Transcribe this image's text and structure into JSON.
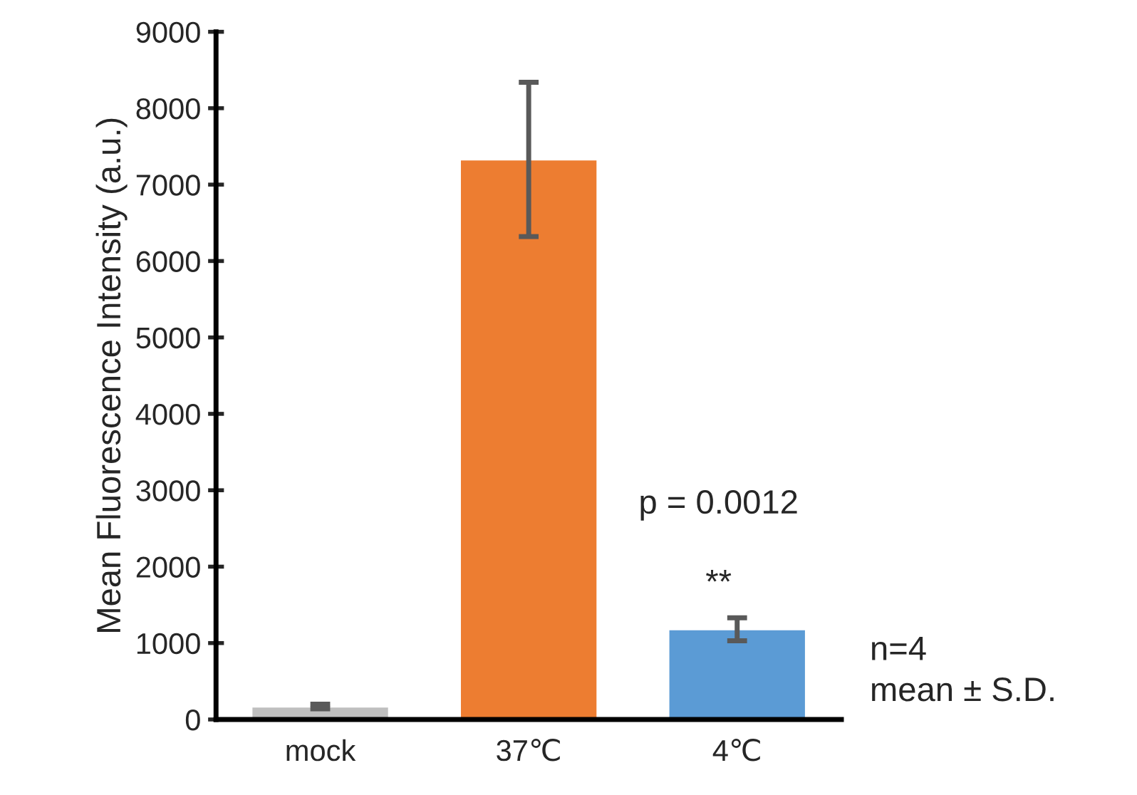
{
  "chart_data": {
    "type": "bar",
    "ylabel": "Mean Fluorescence Intensity (a.u.)",
    "categories": [
      "mock",
      "37℃",
      "4℃"
    ],
    "values": [
      170,
      7330,
      1180
    ],
    "errors": [
      30,
      1010,
      150
    ],
    "colors": [
      "#bfbfbf",
      "#ed7d31",
      "#5b9bd5"
    ],
    "ylim": [
      0,
      9000
    ],
    "yticks": [
      0,
      1000,
      2000,
      3000,
      4000,
      5000,
      6000,
      7000,
      8000,
      9000
    ],
    "grid": false,
    "annotations": [
      "p = 0.0012",
      "**",
      "n=4\nmean ± S.D."
    ]
  }
}
